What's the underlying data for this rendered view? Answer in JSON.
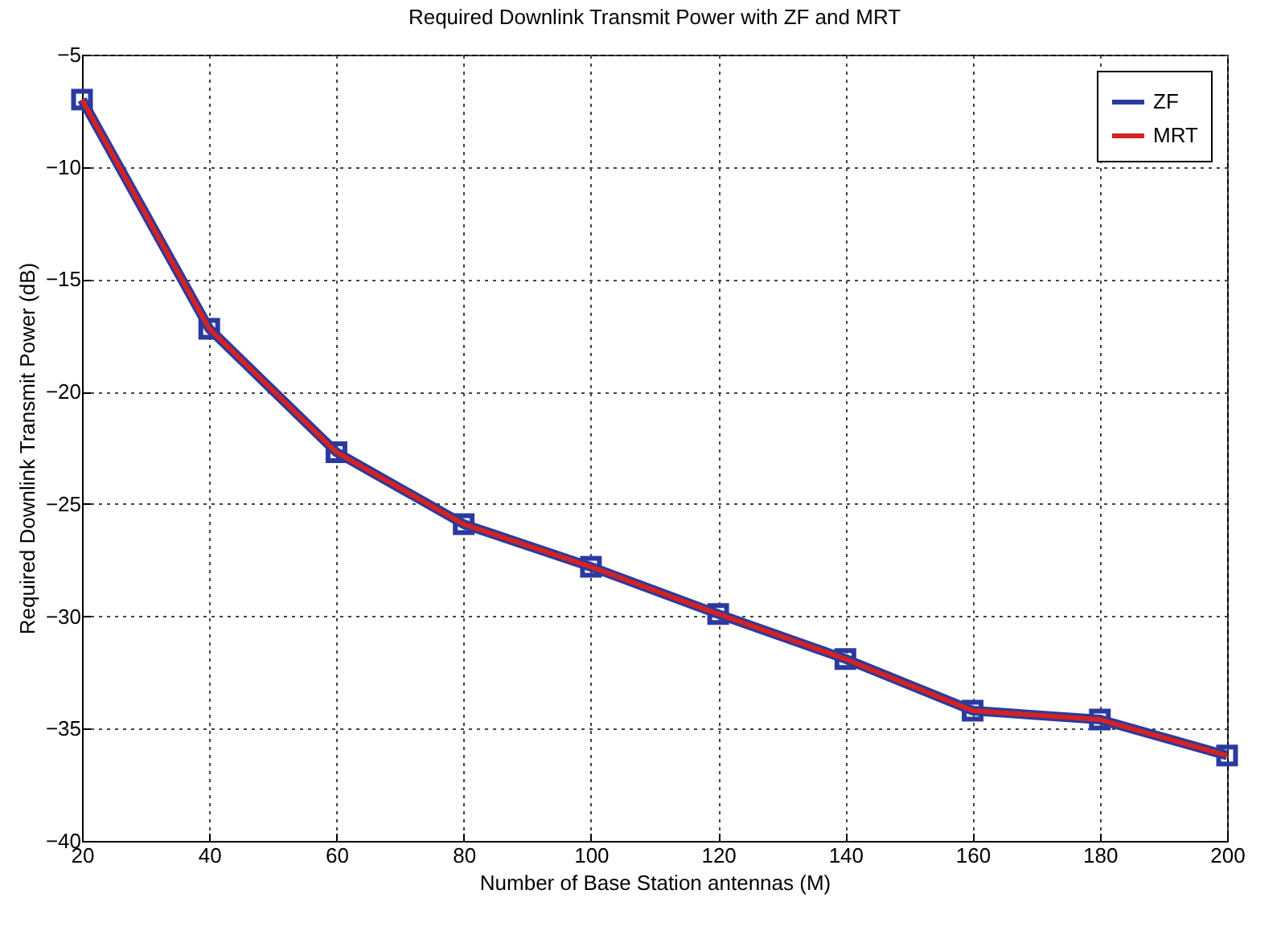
{
  "chart_data": {
    "type": "line",
    "title": "Required Downlink Transmit Power with ZF and MRT",
    "xlabel": "Number of Base Station antennas (M)",
    "ylabel": "Required Downlink Transmit Power (dB)",
    "x": [
      20,
      40,
      60,
      80,
      100,
      120,
      140,
      160,
      180,
      200
    ],
    "series": [
      {
        "name": "ZF",
        "color": "#2b3a9e",
        "marker": "square",
        "values": [
          -7.0,
          -17.2,
          -22.7,
          -25.9,
          -27.8,
          -29.9,
          -31.9,
          -34.2,
          -34.6,
          -36.2
        ]
      },
      {
        "name": "MRT",
        "color": "#d42222",
        "marker": "none",
        "values": [
          -7.0,
          -17.2,
          -22.7,
          -25.9,
          -27.8,
          -29.9,
          -31.9,
          -34.2,
          -34.6,
          -36.2
        ]
      }
    ],
    "xlim": [
      20,
      200
    ],
    "xticks": [
      20,
      40,
      60,
      80,
      100,
      120,
      140,
      160,
      180,
      200
    ],
    "ylim": [
      -40,
      -5
    ],
    "yticks": [
      -40,
      -35,
      -30,
      -25,
      -20,
      -15,
      -10,
      -5
    ],
    "grid": true,
    "legend": "top right",
    "line_style": "solid"
  }
}
